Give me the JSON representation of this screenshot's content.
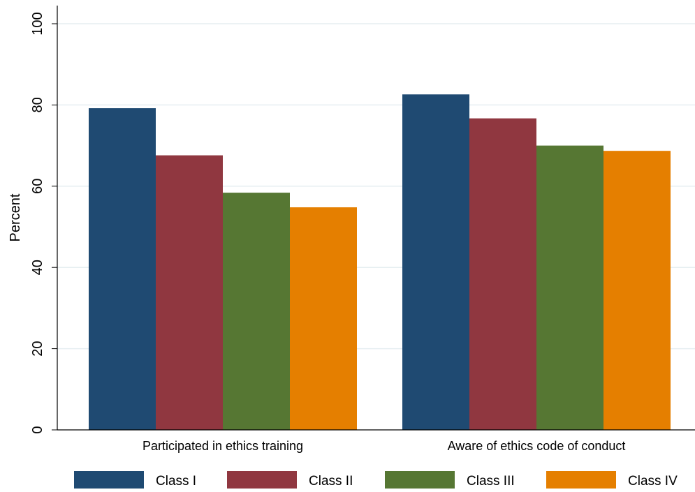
{
  "chart_data": {
    "type": "bar",
    "categories": [
      "Participated in ethics training",
      "Aware of ethics code of conduct"
    ],
    "series": [
      {
        "name": "Class I",
        "color": "#1f4a72",
        "values": [
          79.2,
          82.6
        ]
      },
      {
        "name": "Class II",
        "color": "#903740",
        "values": [
          67.6,
          76.7
        ]
      },
      {
        "name": "Class III",
        "color": "#567733",
        "values": [
          58.4,
          70.0
        ]
      },
      {
        "name": "Class IV",
        "color": "#e57f00",
        "values": [
          54.8,
          68.7
        ]
      }
    ],
    "title": "",
    "xlabel": "",
    "ylabel": "Percent",
    "ylim": [
      0,
      100
    ],
    "yticks": [
      0,
      20,
      40,
      60,
      80,
      100
    ],
    "grid": true,
    "legend_position": "bottom"
  }
}
